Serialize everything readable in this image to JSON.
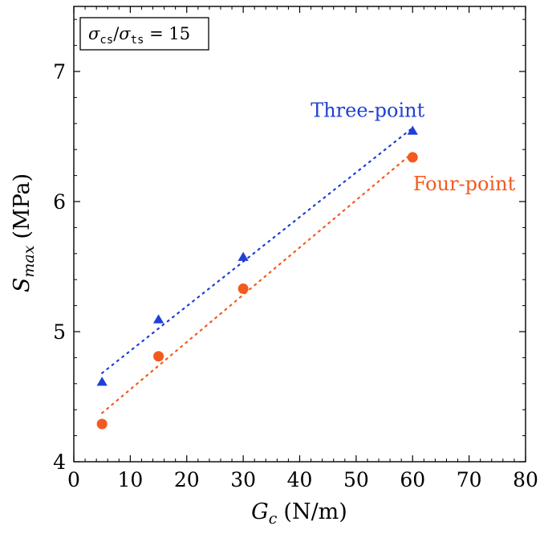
{
  "chart_data": {
    "type": "scatter",
    "title": "",
    "xlabel": "G_c (N/m)",
    "xlabel_parts": {
      "var": "G",
      "sub": "c",
      "unit": "(N/m)"
    },
    "ylabel": "S_max (MPa)",
    "ylabel_parts": {
      "var": "S",
      "sub": "max",
      "unit": "(MPa)"
    },
    "xlim": [
      0,
      80
    ],
    "ylim": [
      4,
      7.5
    ],
    "xticks": [
      0,
      10,
      20,
      30,
      40,
      50,
      60,
      70,
      80
    ],
    "yticks": [
      4,
      5,
      6,
      7
    ],
    "x_minor_step": 2,
    "y_minor_step": 0.2,
    "grid": false,
    "annotation": {
      "text": "σcs/σts = 15",
      "parts": {
        "s1": "σ",
        "sub1": "cs",
        "slash": "/",
        "s2": "σ",
        "sub2": "ts",
        "rest": " = 15"
      },
      "placement": "top-left"
    },
    "series": [
      {
        "name": "Three-point",
        "color": "#1f3fd6",
        "marker": "triangle",
        "x": [
          5,
          15,
          30,
          60
        ],
        "y": [
          4.61,
          5.09,
          5.57,
          6.54
        ],
        "label_placement": "above-right"
      },
      {
        "name": "Four-point",
        "color": "#f25a1f",
        "marker": "circle",
        "x": [
          5,
          15,
          30,
          60
        ],
        "y": [
          4.29,
          4.81,
          5.33,
          6.34
        ],
        "label_placement": "below-right"
      }
    ]
  }
}
